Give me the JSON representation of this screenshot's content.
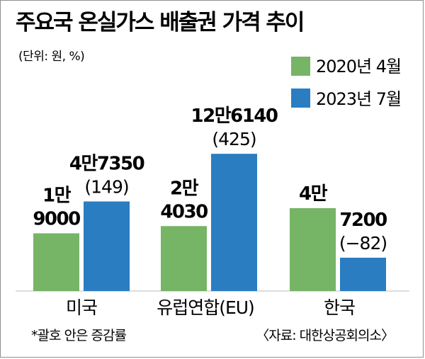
{
  "header": {
    "title": "주요국 온실가스 배출권 가격 추이",
    "unit_note": "(단위: 원, %)"
  },
  "footer": {
    "note": "*괄호 안은 증감률",
    "source": "〈자료: 대한상공회의소〉"
  },
  "colors": {
    "series_2020": "#76b466",
    "series_2023": "#2a7dc1"
  },
  "chart_data": {
    "type": "bar",
    "title": "주요국 온실가스 배출권 가격 추이",
    "units": "원, %",
    "categories": [
      "미국",
      "유럽연합(EU)",
      "한국"
    ],
    "series": [
      {
        "name": "2020년 4월",
        "values": [
          19000,
          24030,
          40000
        ]
      },
      {
        "name": "2023년 7월",
        "values": [
          47350,
          126140,
          7200
        ]
      }
    ],
    "change_pct": [
      149,
      425,
      -82
    ],
    "value_labels": {
      "2020": [
        [
          "1만",
          "9000"
        ],
        [
          "2만",
          "4030"
        ],
        [
          "4만"
        ]
      ],
      "2023": [
        [
          "4만7350",
          "(149)"
        ],
        [
          "12만6140",
          "(425)"
        ],
        [
          "7200",
          "(−82)"
        ]
      ]
    },
    "legend": {
      "position": "top-right",
      "labels": [
        "2020년 4월",
        "2023년 7월"
      ]
    },
    "grid": false
  }
}
